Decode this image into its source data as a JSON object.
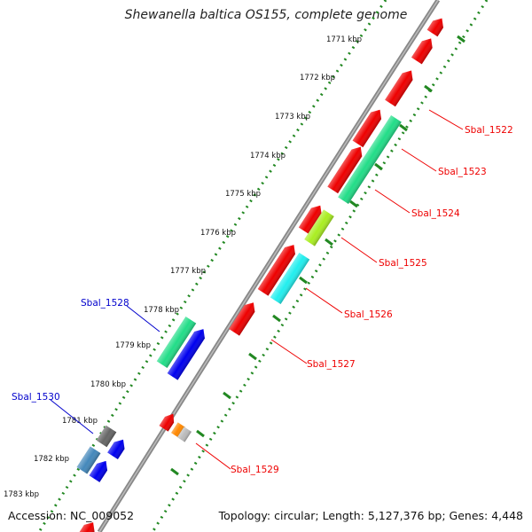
{
  "title": "Shewanella baltica OS155, complete genome",
  "footer": {
    "accession": "Accession: NC_009052",
    "info": "Topology: circular; Length: 5,127,376 bp; Genes: 4,448"
  },
  "kbp_labels": [
    "1771 kbp",
    "1772 kbp",
    "1773 kbp",
    "1774 kbp",
    "1775 kbp",
    "1776 kbp",
    "1777 kbp",
    "1778 kbp",
    "1779 kbp",
    "1780 kbp",
    "1781 kbp",
    "1782 kbp",
    "1783 kbp"
  ],
  "gene_labels": [
    {
      "text": "Sbal_1522",
      "color": "#ee0000"
    },
    {
      "text": "Sbal_1523",
      "color": "#ee0000"
    },
    {
      "text": "Sbal_1524",
      "color": "#ee0000"
    },
    {
      "text": "Sbal_1525",
      "color": "#ee0000"
    },
    {
      "text": "Sbal_1526",
      "color": "#ee0000"
    },
    {
      "text": "Sbal_1527",
      "color": "#ee0000"
    },
    {
      "text": "Sbal_1528",
      "color": "#0000cc"
    },
    {
      "text": "Sbal_1529",
      "color": "#ee0000"
    },
    {
      "text": "Sbal_1530",
      "color": "#0000cc"
    }
  ],
  "colors": {
    "backbone": "#888888",
    "ruler": "#228822",
    "red": "#ee0000",
    "green": "#22dd88",
    "lime": "#aaee22",
    "cyan": "#22eeee",
    "blue": "#0000ee",
    "gray": "#666666",
    "steel": "#4488bb",
    "orange": "#ff8800",
    "silver": "#bbbbbb"
  }
}
